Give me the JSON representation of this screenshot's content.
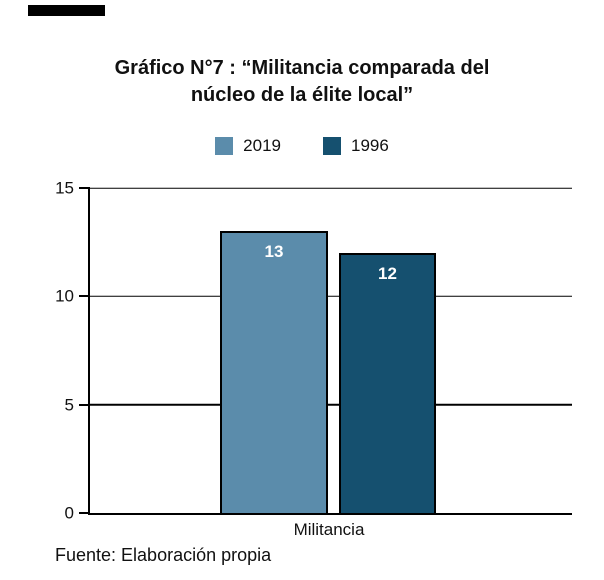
{
  "page": {
    "title_line1": "Gráfico N°7 : “Militancia comparada del",
    "title_line2": "núcleo de la élite local”",
    "source_note": "Fuente: Elaboración propia"
  },
  "chart_data": {
    "type": "bar",
    "title": "Gráfico N°7 : “Militancia comparada del núcleo de la élite local”",
    "categories": [
      "Militancia"
    ],
    "series": [
      {
        "name": "2019",
        "values": [
          13
        ],
        "color": "#5b8cab"
      },
      {
        "name": "1996",
        "values": [
          12
        ],
        "color": "#15506f"
      }
    ],
    "xlabel": "Militancia",
    "ylabel": "",
    "ylim": [
      0,
      15
    ],
    "yticks": [
      0,
      5,
      10,
      15
    ],
    "grid": "horizontal",
    "legend_position": "top",
    "bar_border_color": "#000000",
    "value_label_color": "#ffffff"
  }
}
